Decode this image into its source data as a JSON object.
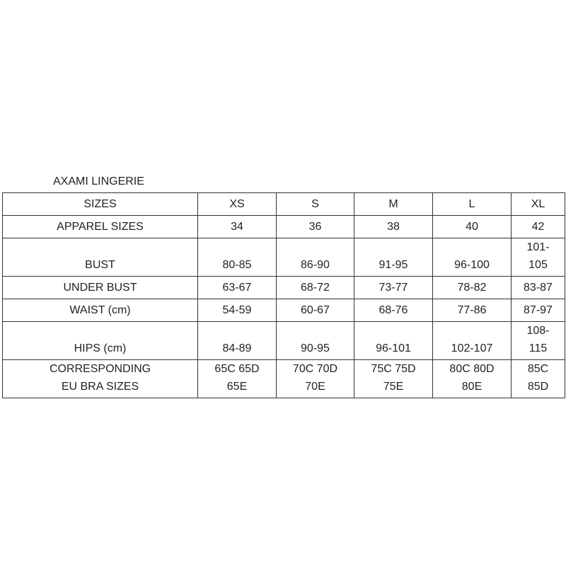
{
  "title": "AXAMI LINGERIE",
  "header": {
    "label": "SIZES",
    "sizes": [
      "XS",
      "S",
      "M",
      "L",
      "XL"
    ]
  },
  "rows": [
    {
      "label": "APPAREL SIZES",
      "values": [
        "34",
        "36",
        "38",
        "40",
        "42"
      ]
    },
    {
      "label": "BUST",
      "values": [
        "80-85",
        "86-90",
        "91-95",
        "96-100",
        "101-105"
      ]
    },
    {
      "label": "UNDER BUST",
      "values": [
        "63-67",
        "68-72",
        "73-77",
        "78-82",
        "83-87"
      ]
    },
    {
      "label": "WAIST (cm)",
      "values": [
        "54-59",
        "60-67",
        "68-76",
        "77-86",
        "87-97"
      ]
    },
    {
      "label": "HIPS (cm)",
      "values": [
        "84-89",
        "90-95",
        "96-101",
        "102-107",
        "108-115"
      ]
    },
    {
      "label": "CORRESPONDING EU BRA SIZES",
      "values": [
        "65C 65D 65E",
        "70C 70D 70E",
        "75C 75D 75E",
        "80C 80D 80E",
        "85C 85D"
      ]
    }
  ]
}
